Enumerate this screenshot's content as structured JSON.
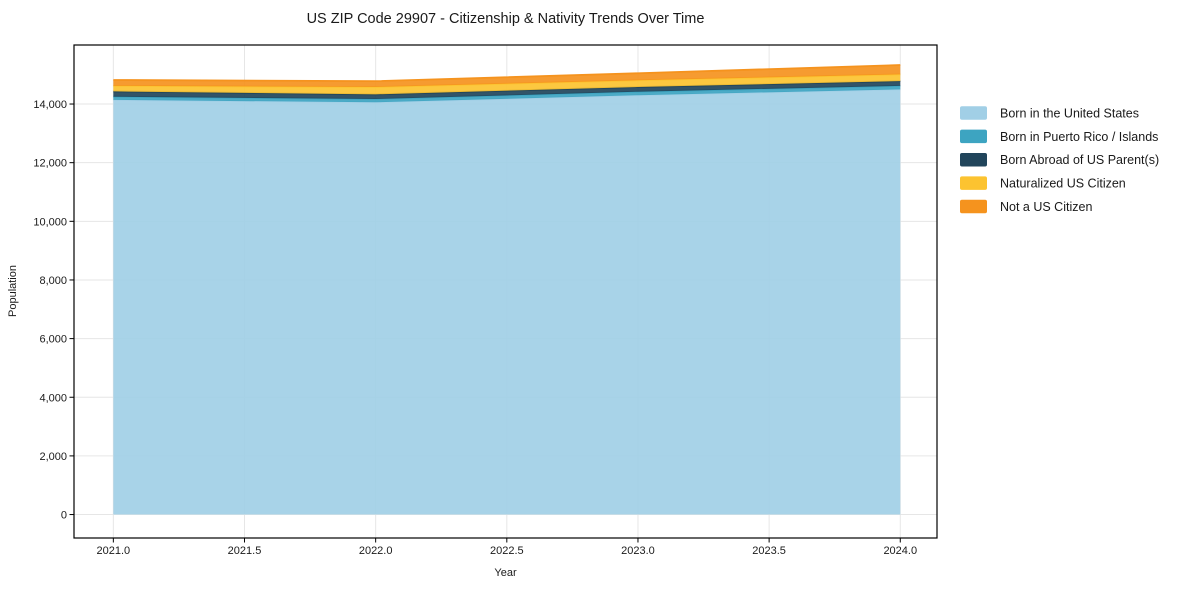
{
  "chart_data": {
    "type": "area",
    "stacked": true,
    "title": "US ZIP Code 29907 - Citizenship & Nativity Trends Over Time",
    "xlabel": "Year",
    "ylabel": "Population",
    "x": [
      2021,
      2022,
      2023,
      2024
    ],
    "series": [
      {
        "name": "Born in the United States",
        "color": "#a1cfe6",
        "values": [
          14140,
          14060,
          14300,
          14500
        ]
      },
      {
        "name": "Born in Puerto Rico / Islands",
        "color": "#3da4c1",
        "values": [
          110,
          110,
          120,
          120
        ]
      },
      {
        "name": "Born Abroad of US Parent(s)",
        "color": "#21455b",
        "values": [
          180,
          160,
          160,
          160
        ]
      },
      {
        "name": "Naturalized US Citizen",
        "color": "#fcc330",
        "values": [
          190,
          250,
          230,
          230
        ]
      },
      {
        "name": "Not a US Citizen",
        "color": "#f5931e",
        "values": [
          200,
          200,
          240,
          320
        ]
      }
    ],
    "totals": [
      14820,
      14780,
      15050,
      15330
    ],
    "xlim": [
      2020.85,
      2024.14
    ],
    "ylim": [
      -800,
      16013
    ],
    "xticks": {
      "values": [
        2021.0,
        2021.5,
        2022.0,
        2022.5,
        2023.0,
        2023.5,
        2024.0
      ],
      "labels": [
        "2021.0",
        "2021.5",
        "2022.0",
        "2022.5",
        "2023.0",
        "2023.5",
        "2024.0"
      ]
    },
    "yticks": {
      "values": [
        0,
        2000,
        4000,
        6000,
        8000,
        10000,
        12000,
        14000
      ],
      "labels": [
        "0",
        "2,000",
        "4,000",
        "6,000",
        "8,000",
        "10,000",
        "12,000",
        "14,000"
      ]
    },
    "grid": true,
    "grid_color": "#e6e6e6",
    "spine_color": "#000000",
    "legend_position": "right-outside"
  }
}
